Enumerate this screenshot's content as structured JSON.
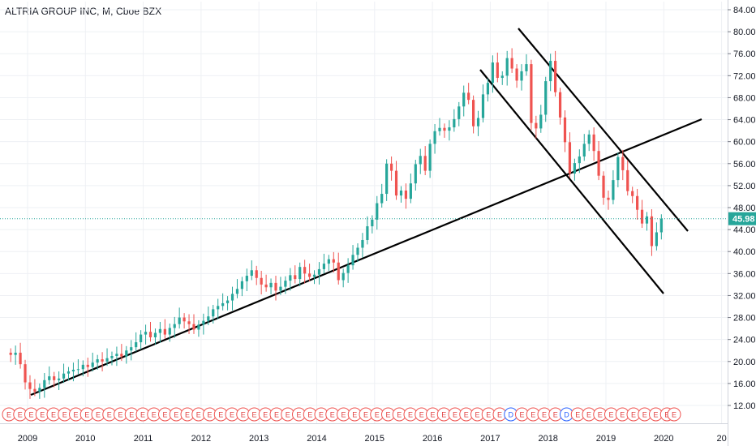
{
  "chart_data": {
    "type": "candlestick",
    "title": "ALTRIA GROUP INC, M, Cboe BZX",
    "y_ticks": [
      "84.00",
      "80.00",
      "76.00",
      "72.00",
      "68.00",
      "64.00",
      "60.00",
      "56.00",
      "52.00",
      "48.00",
      "44.00",
      "40.00",
      "36.00",
      "32.00",
      "28.00",
      "24.00",
      "20.00",
      "16.00",
      "12.00"
    ],
    "ylim": [
      8.5,
      85.5
    ],
    "x_ticks": [
      "2009",
      "2010",
      "2011",
      "2012",
      "2013",
      "2014",
      "2015",
      "2016",
      "2017",
      "2018",
      "2019",
      "2020",
      "20"
    ],
    "last_price": "45.98",
    "colors": {
      "up": "#26a69a",
      "down": "#ef5350",
      "last": "#26a69a",
      "price_line": "#26a69a",
      "trend": "#000000",
      "grid": "#eef0f4"
    },
    "earnings_markers": [
      "E",
      "E",
      "E",
      "E",
      "E",
      "E",
      "E",
      "E",
      "E",
      "E",
      "E",
      "E",
      "E",
      "E",
      "E",
      "E",
      "E",
      "E",
      "E",
      "E",
      "E",
      "E",
      "E",
      "E",
      "E",
      "E",
      "E",
      "E",
      "E",
      "E",
      "E",
      "E",
      "E",
      "E",
      "E",
      "E",
      "E",
      "E",
      "E",
      "E",
      "E",
      "E",
      "E",
      "E",
      "E",
      "D",
      "E",
      "E",
      "E",
      "E",
      "D",
      "E",
      "E",
      "E",
      "E",
      "E",
      "E",
      "E",
      "E",
      "E"
    ],
    "start_month": "2008-09",
    "closes": [
      21.2,
      21.6,
      19.5,
      16.2,
      15.0,
      14.5,
      15.2,
      16.6,
      17.3,
      16.6,
      16.9,
      17.8,
      18.2,
      18.5,
      18.6,
      19.4,
      19.0,
      19.8,
      20.4,
      20.0,
      20.6,
      21.0,
      21.4,
      20.9,
      22.0,
      22.6,
      23.5,
      24.9,
      25.4,
      24.4,
      25.2,
      25.9,
      24.9,
      26.1,
      26.8,
      28.0,
      27.3,
      26.8,
      25.8,
      26.7,
      27.4,
      28.2,
      29.5,
      30.1,
      30.6,
      31.1,
      32.3,
      33.2,
      34.6,
      35.6,
      36.6,
      35.2,
      34.0,
      33.5,
      34.3,
      32.9,
      33.6,
      34.7,
      35.7,
      35.0,
      37.2,
      36.0,
      35.4,
      35.8,
      36.8,
      37.8,
      38.6,
      38.0,
      34.8,
      36.1,
      37.5,
      39.4,
      40.7,
      42.1,
      44.6,
      45.8,
      48.8,
      50.5,
      56.0,
      54.7,
      50.2,
      51.1,
      49.6,
      52.4,
      55.9,
      57.4,
      54.7,
      59.6,
      61.9,
      62.5,
      62.0,
      62.6,
      64.1,
      66.4,
      68.9,
      67.6,
      62.8,
      64.3,
      68.6,
      70.7,
      74.4,
      71.6,
      72.0,
      75.2,
      73.3,
      71.1,
      72.8,
      74.1,
      63.4,
      62.4,
      64.9,
      71.0,
      74.7,
      69.0,
      64.4,
      59.9,
      54.2,
      56.1,
      57.3,
      59.6,
      61.3,
      58.3,
      53.8,
      49.8,
      49.4,
      53.0,
      57.2,
      54.8,
      51.0,
      50.1,
      47.6,
      45.1,
      46.4,
      41.0,
      43.5,
      45.98
    ]
  }
}
